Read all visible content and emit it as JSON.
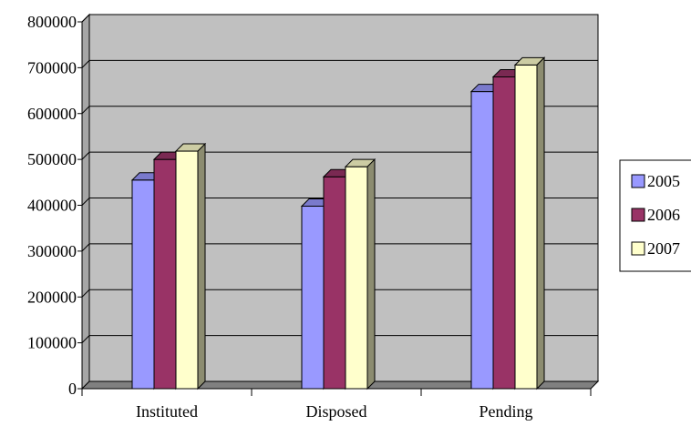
{
  "chart_data": {
    "type": "bar",
    "categories": [
      "Instituted",
      "Disposed",
      "Pending"
    ],
    "series": [
      {
        "name": "2005",
        "values": [
          455000,
          398000,
          648000
        ],
        "color": "#9999ff"
      },
      {
        "name": "2006",
        "values": [
          500000,
          462000,
          680000
        ],
        "color": "#993366"
      },
      {
        "name": "2007",
        "values": [
          518000,
          484000,
          706000
        ],
        "color": "#ffffcc"
      }
    ],
    "ylim": [
      0,
      800000
    ],
    "yticks": [
      "0",
      "100000",
      "200000",
      "300000",
      "400000",
      "500000",
      "600000",
      "700000",
      "800000"
    ],
    "grid": true,
    "legend": "right",
    "plot_background": "#c0c0c0",
    "floor_color": "#808080",
    "title": "",
    "xlabel": "",
    "ylabel": ""
  }
}
